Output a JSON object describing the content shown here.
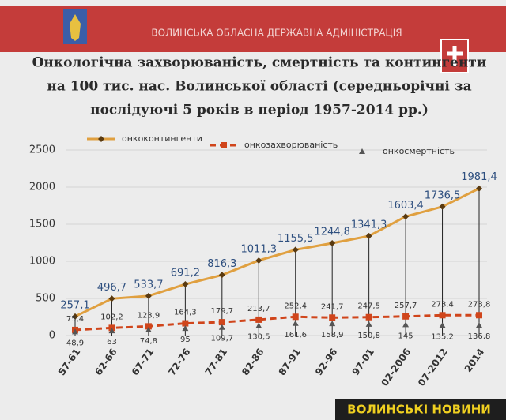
{
  "header": "ВОЛИНСЬКА ОБЛАСНА ДЕРЖАВНА АДМІНІСТРАЦІЯ",
  "watermark": "ВОЛИНСЬКІ НОВИНИ",
  "chart_data": {
    "type": "line",
    "title": [
      "Онкологічна захворюваність, смертність та контингенти",
      "на 100 тис. нас. Волинської області (середньорічні за",
      "послідуючі 5 років в період 1957-2014 рр.)"
    ],
    "categories": [
      "57-61",
      "62-66",
      "67-71",
      "72-76",
      "77-81",
      "82-86",
      "87-91",
      "92-96",
      "97-01",
      "02-2006",
      "07-2012",
      "2014"
    ],
    "series": [
      {
        "name": "онкоконтингенти",
        "color": "#e0a040",
        "marker": "diamond",
        "line": true,
        "dashed": false,
        "label_color": "#2e4f7f",
        "label_side": "above",
        "values": [
          257.1,
          496.7,
          533.7,
          691.2,
          816.3,
          1011.3,
          1155.5,
          1244.8,
          1341.3,
          1603.4,
          1736.5,
          1981.4
        ],
        "value_labels": [
          "257,1",
          "496,7",
          "533,7",
          "691,2",
          "816,3",
          "1011,3",
          "1155,5",
          "1244,8",
          "1341,3",
          "1603,4",
          "1736,5",
          "1981,4"
        ]
      },
      {
        "name": "онкозахворюваність",
        "color": "#d0451b",
        "marker": "square",
        "line": true,
        "dashed": true,
        "label_color": "#333333",
        "label_side": "above",
        "values": [
          75.4,
          102.2,
          123.9,
          164.3,
          179.7,
          213.7,
          252.4,
          241.7,
          247.5,
          257.7,
          273.4,
          273.8
        ],
        "value_labels": [
          "75,4",
          "102,2",
          "123,9",
          "164,3",
          "179,7",
          "213,7",
          "252,4",
          "241,7",
          "247,5",
          "257,7",
          "273,4",
          "273,8"
        ]
      },
      {
        "name": "онкосмертність",
        "color": "#555555",
        "marker": "triangle",
        "line": false,
        "dashed": false,
        "label_color": "#333333",
        "label_side": "below",
        "values": [
          48.9,
          63,
          74.8,
          95,
          109.7,
          130.5,
          161.6,
          158.9,
          150.8,
          145,
          135.2,
          136.8
        ],
        "value_labels": [
          "48,9",
          "63",
          "74,8",
          "95",
          "109,7",
          "130,5",
          "161,6",
          "158,9",
          "150,8",
          "145",
          "135,2",
          "136,8"
        ]
      }
    ],
    "ylim": [
      0,
      2500
    ],
    "yticks": [
      0,
      500,
      1000,
      1500,
      2000,
      2500
    ],
    "grid": true,
    "legend": "top",
    "drop_lines": true
  }
}
